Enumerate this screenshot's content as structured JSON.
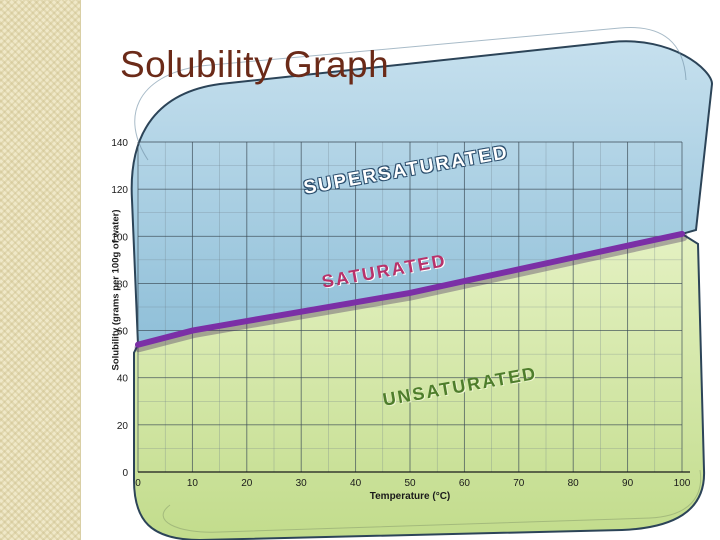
{
  "slide": {
    "title": "Solubility Graph"
  },
  "chart_data": {
    "type": "line",
    "title": "",
    "xlabel": "Temperature (°C)",
    "ylabel": "Solubility (grams per 100g of water)",
    "xlim": [
      0,
      100
    ],
    "ylim": [
      0,
      140
    ],
    "x_ticks": [
      0,
      10,
      20,
      30,
      40,
      50,
      60,
      70,
      80,
      90,
      100
    ],
    "y_ticks": [
      0,
      20,
      40,
      60,
      80,
      100,
      120,
      140
    ],
    "grid": true,
    "series": [
      {
        "x": [
          0,
          10,
          20,
          30,
          40,
          50,
          60,
          70,
          80,
          90,
          100
        ],
        "values": [
          54,
          60,
          64,
          68,
          72,
          76,
          81,
          86,
          91,
          96,
          101
        ]
      }
    ],
    "regions": [
      {
        "label": "SUPERSATURATED"
      },
      {
        "label": "SATURATED"
      },
      {
        "label": "UNSATURATED"
      }
    ],
    "colors": {
      "curve": "#7b2fa6",
      "upper_region": "#a9cde0",
      "lower_region": "#d4e8a6"
    }
  }
}
